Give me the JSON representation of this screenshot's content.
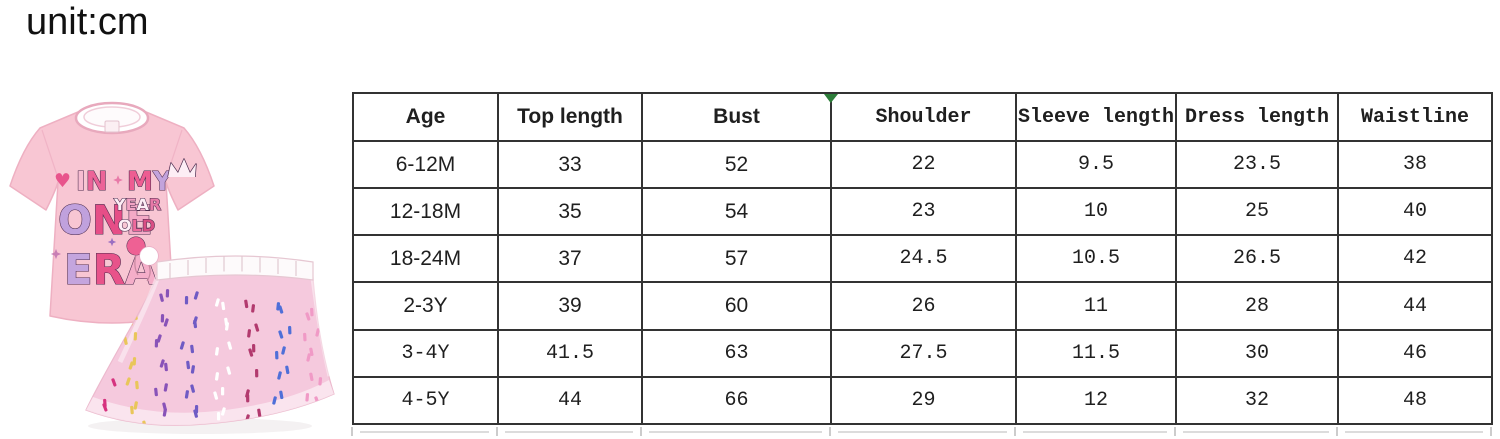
{
  "page": {
    "unit_label": "unit:cm"
  },
  "size_table": {
    "columns": [
      "Age",
      "Top length",
      "Bust",
      "Shoulder",
      "Sleeve length",
      "Dress length",
      "Waistline"
    ],
    "rows": [
      [
        "6-12M",
        "33",
        "52",
        "22",
        "9.5",
        "23.5",
        "38"
      ],
      [
        "12-18M",
        "35",
        "54",
        "23",
        "10",
        "25",
        "40"
      ],
      [
        "18-24M",
        "37",
        "57",
        "24.5",
        "10.5",
        "26.5",
        "42"
      ],
      [
        "2-3Y",
        "39",
        "60",
        "26",
        "11",
        "28",
        "44"
      ],
      [
        "3-4Y",
        "41.5",
        "63",
        "27.5",
        "11.5",
        "30",
        "46"
      ],
      [
        "4-5Y",
        "44",
        "66",
        "29",
        "12",
        "32",
        "48"
      ]
    ]
  },
  "product": {
    "shirt_print": {
      "heart": "♥",
      "line1_left": {
        "text": "IN",
        "colors": [
          "#f7bcd1",
          "#ec6398"
        ]
      },
      "line1_right": {
        "text": "MY",
        "colors": [
          "#ee5d92",
          "#c2a3dc"
        ]
      },
      "line2_main": {
        "text": "ONE",
        "colors": [
          "#c0a1dd",
          "#e64e87",
          "#f3a9c6"
        ]
      },
      "line2_top": {
        "text": "YEAR",
        "colors": [
          "#fdeef5",
          "#f2a3c4",
          "#fdeef5",
          "#e87aa8"
        ]
      },
      "line2_bottom": {
        "text": "OLD",
        "colors": [
          "#fdeef5",
          "#ee6a9c",
          "#d94f84"
        ]
      },
      "line3": {
        "text": "ERA",
        "colors": [
          "#c4a5de",
          "#e8538a",
          "#f5aec9"
        ]
      }
    },
    "colors": {
      "shirt": "#f8c6d3",
      "shirt_outline": "#eeb0c2",
      "skirt": "#f5c9dd",
      "waistband": "#fdfafb",
      "print_outline": "#4b2b4e",
      "confetti": [
        "#d6337f",
        "#6f5bc4",
        "#4f6fd8",
        "#e9c65a",
        "#ffffff",
        "#f09ac6",
        "#8853b8",
        "#b23a6e"
      ]
    }
  },
  "marker": {
    "color": "#2d7d3a"
  }
}
